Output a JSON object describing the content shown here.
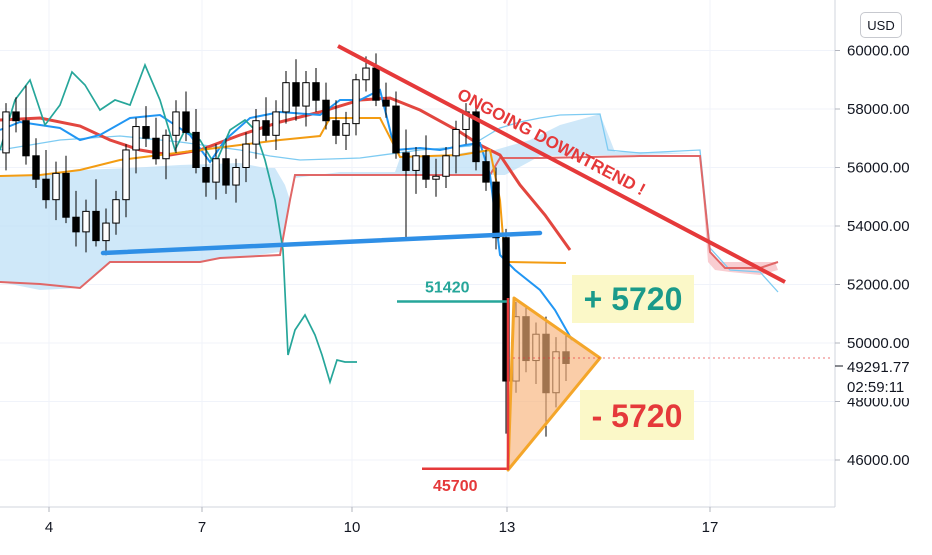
{
  "currency": "USD",
  "chart_data": {
    "type": "candlestick",
    "y_axis": {
      "min": 44000,
      "max": 61500,
      "ticks": [
        "60000.00",
        "58000.00",
        "56000.00",
        "54000.00",
        "52000.00",
        "50000.00",
        "48000.00",
        "46000.00"
      ]
    },
    "x_axis": {
      "ticks": [
        "4",
        "7",
        "10",
        "13",
        "17"
      ]
    },
    "price_label": "49291.77",
    "countdown": "02:59:11",
    "annotations": {
      "trend_text": "ONGOING DOWNTREND !",
      "upper_level": "51420",
      "lower_level": "45700",
      "plus_box": "+ 5720",
      "minus_box": "- 5720"
    },
    "levels": {
      "upper": 51420,
      "lower": 45700
    },
    "candles": [
      [
        56500,
        58200,
        55900,
        57900
      ],
      [
        57900,
        58400,
        57200,
        57600
      ],
      [
        57600,
        58800,
        56100,
        56400
      ],
      [
        56400,
        57000,
        55300,
        55600
      ],
      [
        55600,
        56600,
        54600,
        54900
      ],
      [
        54900,
        56200,
        54200,
        55800
      ],
      [
        55800,
        56400,
        54100,
        54300
      ],
      [
        54300,
        55200,
        53300,
        53800
      ],
      [
        53800,
        54900,
        53100,
        54500
      ],
      [
        54500,
        55600,
        53300,
        53500
      ],
      [
        53500,
        54600,
        53000,
        54100
      ],
      [
        54100,
        55200,
        53700,
        54900
      ],
      [
        54900,
        56800,
        54300,
        56600
      ],
      [
        56600,
        57700,
        55800,
        57400
      ],
      [
        57400,
        58100,
        56700,
        57000
      ],
      [
        57000,
        57700,
        56100,
        56300
      ],
      [
        56300,
        57300,
        55600,
        57100
      ],
      [
        57100,
        58300,
        56500,
        57900
      ],
      [
        57900,
        58600,
        56900,
        57200
      ],
      [
        57200,
        58000,
        55800,
        56000
      ],
      [
        56000,
        56700,
        55000,
        55500
      ],
      [
        55500,
        56800,
        54900,
        56300
      ],
      [
        56300,
        57000,
        55100,
        55400
      ],
      [
        55400,
        56300,
        54800,
        56000
      ],
      [
        56000,
        57200,
        55500,
        56800
      ],
      [
        56800,
        58000,
        56300,
        57600
      ],
      [
        57600,
        58400,
        56900,
        57100
      ],
      [
        57100,
        58300,
        56600,
        57900
      ],
      [
        57900,
        59300,
        57500,
        58900
      ],
      [
        58900,
        59700,
        57600,
        58100
      ],
      [
        58100,
        59300,
        57400,
        58900
      ],
      [
        58900,
        59400,
        57900,
        58300
      ],
      [
        58300,
        58900,
        57300,
        57600
      ],
      [
        57600,
        58300,
        56800,
        57100
      ],
      [
        57100,
        57900,
        56600,
        57500
      ],
      [
        57500,
        59200,
        57100,
        59000
      ],
      [
        59000,
        59800,
        58600,
        59400
      ],
      [
        59400,
        59900,
        58100,
        58300
      ],
      [
        58300,
        58900,
        57700,
        58100
      ],
      [
        58100,
        58600,
        56300,
        56500
      ],
      [
        56500,
        57300,
        53500,
        55900
      ],
      [
        55900,
        56700,
        55100,
        56400
      ],
      [
        56400,
        57100,
        55300,
        55600
      ],
      [
        55600,
        56300,
        55000,
        55700
      ],
      [
        55700,
        56700,
        55300,
        56400
      ],
      [
        56400,
        57600,
        55800,
        57300
      ],
      [
        57300,
        58200,
        56800,
        57900
      ],
      [
        57900,
        58200,
        55900,
        56200
      ],
      [
        56200,
        56600,
        55200,
        55500
      ],
      [
        55500,
        56000,
        53200,
        53600
      ],
      [
        53600,
        53900,
        46900,
        48700
      ],
      [
        48700,
        51400,
        48300,
        50900
      ],
      [
        50900,
        51300,
        49000,
        49400
      ],
      [
        49400,
        50700,
        48600,
        50300
      ],
      [
        50300,
        50900,
        46800,
        48300
      ],
      [
        48300,
        50200,
        47800,
        49700
      ],
      [
        49700,
        50300,
        48700,
        49300
      ]
    ]
  }
}
